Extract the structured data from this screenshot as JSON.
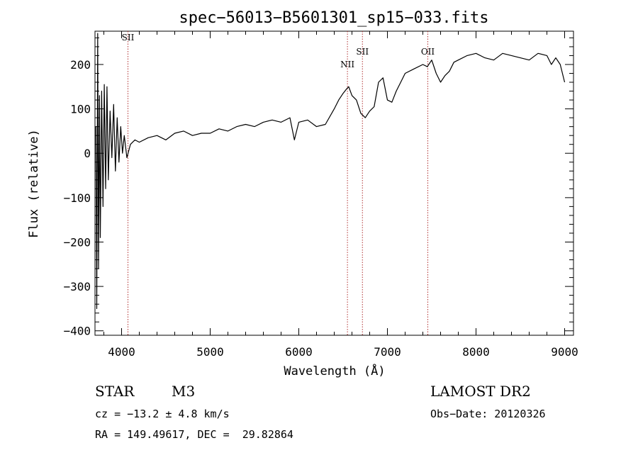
{
  "chart_data": {
    "type": "line",
    "title": "spec−56013−B5601301_sp15−033.fits",
    "xlabel": "Wavelength (Å)",
    "ylabel": "Flux (relative)",
    "xlim": [
      3700,
      9100
    ],
    "ylim": [
      -410,
      275
    ],
    "xticks": [
      4000,
      5000,
      6000,
      7000,
      8000,
      9000
    ],
    "xtick_labels": [
      "4000",
      "5000",
      "6000",
      "7000",
      "8000",
      "9000"
    ],
    "yticks": [
      -400,
      -300,
      -200,
      -100,
      0,
      100,
      200
    ],
    "ytick_labels": [
      "−400",
      "−300",
      "−200",
      "−100",
      "0",
      "100",
      "200"
    ],
    "grid": false,
    "series": [
      {
        "x": [
          3710,
          3720,
          3730,
          3740,
          3750,
          3760,
          3775,
          3790,
          3805,
          3820,
          3835,
          3850,
          3870,
          3890,
          3910,
          3930,
          3950,
          3970,
          3990,
          4010,
          4030,
          4060,
          4100,
          4150,
          4200,
          4300,
          4400,
          4500,
          4600,
          4700,
          4800,
          4900,
          5000,
          5100,
          5200,
          5300,
          5400,
          5500,
          5600,
          5700,
          5800,
          5900,
          5950,
          6000,
          6100,
          6200,
          6300,
          6400,
          6450,
          6500,
          6540,
          6563,
          6600,
          6650,
          6700,
          6750,
          6800,
          6850,
          6900,
          6950,
          7000,
          7050,
          7100,
          7150,
          7200,
          7300,
          7400,
          7450,
          7500,
          7550,
          7600,
          7650,
          7700,
          7750,
          7800,
          7900,
          8000,
          8100,
          8200,
          8300,
          8400,
          8500,
          8600,
          8700,
          8800,
          8850,
          8900,
          8950,
          9000
        ],
        "y": [
          60,
          -350,
          270,
          -260,
          130,
          -190,
          140,
          -120,
          155,
          -80,
          150,
          -60,
          95,
          -10,
          110,
          -40,
          80,
          -20,
          60,
          0,
          40,
          -10,
          20,
          30,
          25,
          35,
          40,
          30,
          45,
          50,
          40,
          45,
          45,
          55,
          50,
          60,
          65,
          60,
          70,
          75,
          70,
          80,
          30,
          70,
          75,
          60,
          65,
          100,
          120,
          135,
          145,
          150,
          130,
          120,
          90,
          80,
          95,
          105,
          160,
          170,
          120,
          115,
          140,
          160,
          180,
          190,
          200,
          195,
          210,
          180,
          160,
          175,
          185,
          205,
          210,
          220,
          225,
          215,
          210,
          225,
          220,
          215,
          210,
          225,
          220,
          200,
          215,
          200,
          160
        ]
      }
    ],
    "lines": [
      {
        "x": 4072,
        "label": "SII"
      },
      {
        "x": 6549,
        "label": "NII"
      },
      {
        "x": 6718,
        "label": "SII"
      },
      {
        "x": 7456,
        "label": "OII"
      }
    ],
    "annotations": {
      "object_class": "STAR",
      "subclass": "M3",
      "survey": "LAMOST DR2",
      "cz": "cz = −13.2 ± 4.8 km/s",
      "obs_date": "Obs−Date: 20120326",
      "radec": "RA = 149.49617, DEC =  29.82864"
    }
  }
}
